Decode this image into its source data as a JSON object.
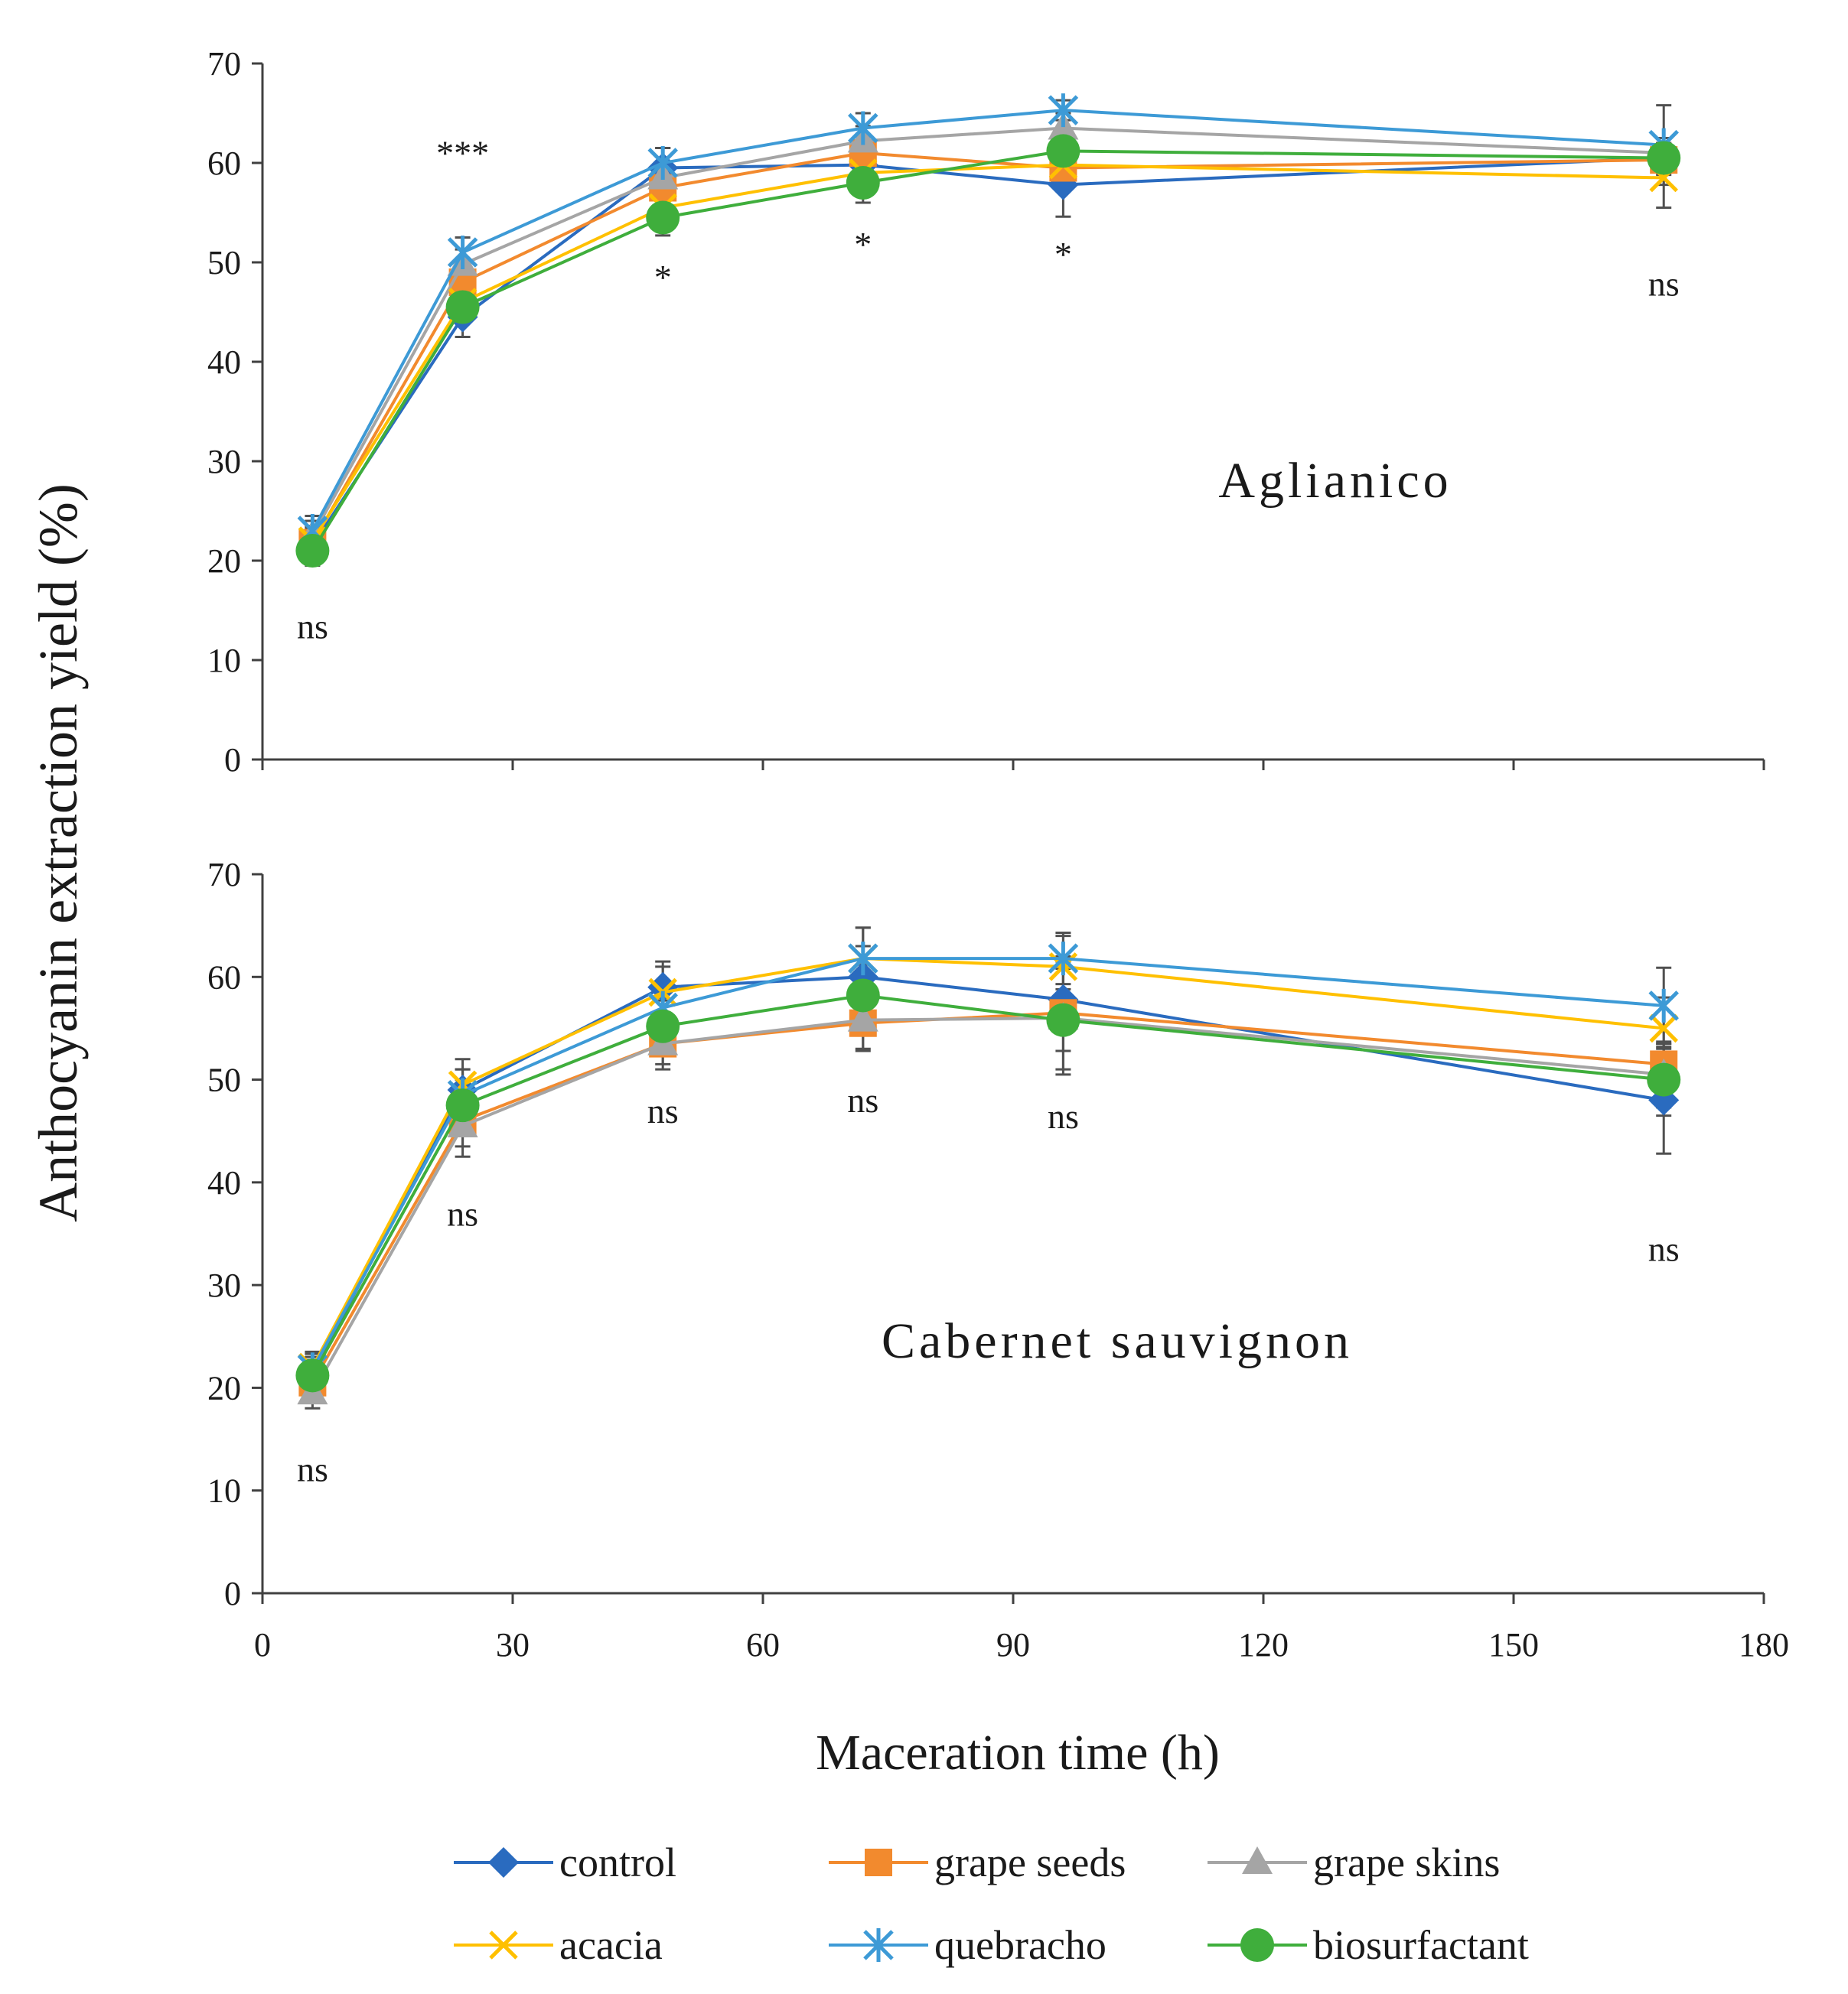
{
  "chart_data": {
    "type": "line",
    "ylabel": "Anthocyanin extraction yield (%)",
    "xlabel": "Maceration time (h)",
    "xlim": [
      0,
      180
    ],
    "ylim": [
      0,
      70
    ],
    "x_ticks": [
      0,
      30,
      60,
      90,
      120,
      150,
      180
    ],
    "y_ticks": [
      0,
      10,
      20,
      30,
      40,
      50,
      60,
      70
    ],
    "x": [
      6,
      24,
      48,
      72,
      96,
      168
    ],
    "legend": {
      "position": "bottom",
      "entries": [
        "control",
        "grape seeds",
        "grape skins",
        "acacia",
        "quebracho",
        "biosurfactant"
      ]
    },
    "series_styles": [
      {
        "name": "control",
        "color": "#2a6bbf",
        "marker": "diamond"
      },
      {
        "name": "grape seeds",
        "color": "#f28a2e",
        "marker": "square"
      },
      {
        "name": "grape skins",
        "color": "#a5a5a5",
        "marker": "triangle"
      },
      {
        "name": "acacia",
        "color": "#ffc000",
        "marker": "x"
      },
      {
        "name": "quebracho",
        "color": "#3d9ad6",
        "marker": "star"
      },
      {
        "name": "biosurfactant",
        "color": "#3fae3c",
        "marker": "circle"
      }
    ],
    "panels": [
      {
        "title": "Aglianico",
        "significance": [
          "ns",
          "***",
          "*",
          "*",
          "*",
          "ns"
        ],
        "series": [
          {
            "name": "control",
            "values": [
              21.5,
              44.5,
              59.5,
              59.8,
              57.8,
              60.5
            ],
            "errors": [
              1.5,
              2.0,
              2.0,
              2.0,
              3.2,
              1.5
            ]
          },
          {
            "name": "grape seeds",
            "values": [
              21.8,
              48.0,
              57.5,
              61.0,
              59.5,
              60.3
            ],
            "errors": [
              1.5,
              1.5,
              1.5,
              1.8,
              1.5,
              1.5
            ]
          },
          {
            "name": "grape skins",
            "values": [
              22.5,
              49.8,
              58.5,
              62.2,
              63.5,
              61.0
            ],
            "errors": [
              1.5,
              1.5,
              1.5,
              1.5,
              1.5,
              1.5
            ]
          },
          {
            "name": "acacia",
            "values": [
              22.0,
              46.0,
              55.5,
              59.0,
              59.8,
              58.5
            ],
            "errors": [
              1.5,
              1.5,
              1.5,
              1.5,
              1.5,
              3.0
            ]
          },
          {
            "name": "quebracho",
            "values": [
              23.0,
              51.0,
              60.0,
              63.5,
              65.3,
              61.8
            ],
            "errors": [
              1.5,
              1.5,
              1.5,
              1.5,
              1.0,
              4.0
            ]
          },
          {
            "name": "biosurfactant",
            "values": [
              21.0,
              45.5,
              54.5,
              58.0,
              61.2,
              60.5
            ],
            "errors": [
              1.5,
              1.5,
              1.8,
              2.0,
              1.5,
              1.5
            ]
          }
        ]
      },
      {
        "title": "Cabernet sauvignon",
        "significance": [
          "ns",
          "ns",
          "ns",
          "ns",
          "ns",
          "ns"
        ],
        "series": [
          {
            "name": "control",
            "values": [
              21.5,
              49.0,
              59.0,
              60.0,
              57.8,
              48.0
            ],
            "errors": [
              1.5,
              2.0,
              2.5,
              3.0,
              3.0,
              5.2
            ]
          },
          {
            "name": "grape seeds",
            "values": [
              20.5,
              46.0,
              53.5,
              55.5,
              56.5,
              51.5
            ],
            "errors": [
              1.5,
              2.5,
              2.0,
              2.5,
              5.5,
              1.5
            ]
          },
          {
            "name": "grape skins",
            "values": [
              19.5,
              45.5,
              53.5,
              55.8,
              56.0,
              50.5
            ],
            "errors": [
              1.5,
              3.0,
              2.5,
              3.0,
              5.5,
              3.2
            ]
          },
          {
            "name": "acacia",
            "values": [
              22.0,
              49.5,
              58.5,
              61.8,
              61.0,
              55.0
            ],
            "errors": [
              1.5,
              2.5,
              2.5,
              3.0,
              3.0,
              3.0
            ]
          },
          {
            "name": "quebracho",
            "values": [
              21.8,
              48.5,
              57.0,
              61.8,
              61.8,
              57.2
            ],
            "errors": [
              1.5,
              2.5,
              2.5,
              3.0,
              2.5,
              3.7
            ]
          },
          {
            "name": "biosurfactant",
            "values": [
              21.2,
              47.5,
              55.2,
              58.2,
              55.8,
              50.0
            ],
            "errors": [
              1.5,
              2.5,
              2.5,
              3.0,
              3.0,
              3.5
            ]
          }
        ]
      }
    ]
  }
}
